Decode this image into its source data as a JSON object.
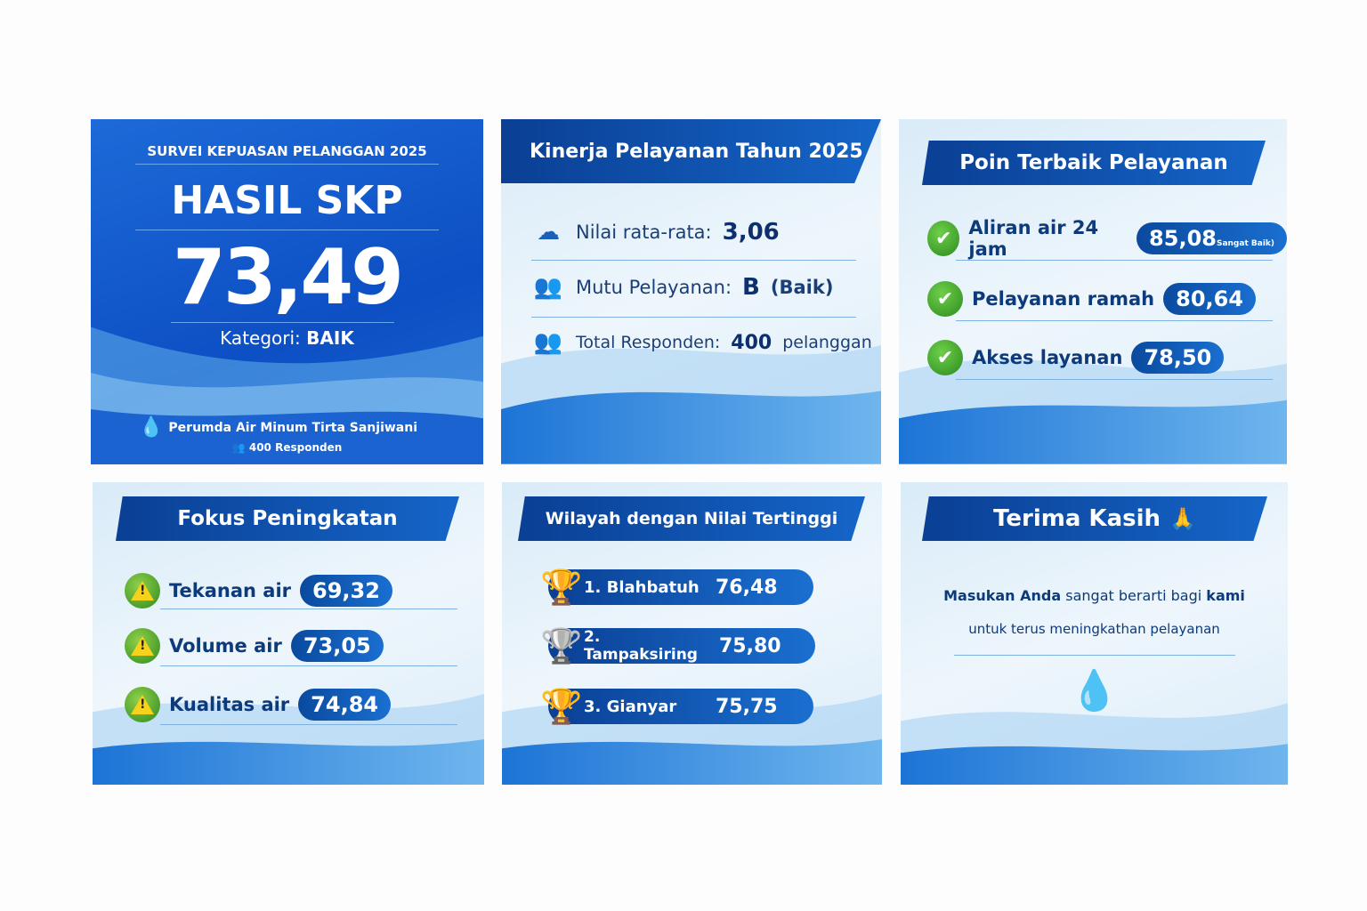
{
  "hasil": {
    "subtitle": "SURVEI KEPUASAN PELANGGAN 2025",
    "title": "HASIL SKP",
    "score": "73,49",
    "category_label": "Kategori:",
    "category_value": "BAIK",
    "organization": "Perumda Air Minum Tirta Sanjiwani",
    "respondents": "400 Responden"
  },
  "kinerja": {
    "title": "Kinerja Pelayanan Tahun 2025",
    "items": [
      {
        "icon": "cloud-icon",
        "label": "Nilai rata-rata:",
        "value": "3,06",
        "suffix": ""
      },
      {
        "icon": "group-icon",
        "label": "Mutu Pelayanan:",
        "value": "B",
        "suffix": "(Baik)"
      },
      {
        "icon": "people-icon",
        "label": "Total Responden:",
        "value": "400",
        "suffix": "pelanggan"
      }
    ]
  },
  "terbaik": {
    "title": "Poin Terbaik Pelayanan",
    "items": [
      {
        "label": "Aliran air 24 jam",
        "value": "85,08",
        "note": "Sangat Baik)"
      },
      {
        "label": "Pelayanan ramah",
        "value": "80,64"
      },
      {
        "label": "Akses layanan",
        "value": "78,50"
      }
    ]
  },
  "fokus": {
    "title": "Fokus Peningkatan",
    "items": [
      {
        "label": "Tekanan air",
        "value": "69,32"
      },
      {
        "label": "Volume air",
        "value": "73,05"
      },
      {
        "label": "Kualitas air",
        "value": "74,84"
      }
    ]
  },
  "wilayah": {
    "title": "Wilayah dengan Nilai Tertinggi",
    "items": [
      {
        "label": "1. Blahbatuh",
        "value": "76,48",
        "trophy": "gold"
      },
      {
        "label": "2. Tampaksiring",
        "value": "75,80",
        "trophy": "silver"
      },
      {
        "label": "3. Gianyar",
        "value": "75,75",
        "trophy": "gold"
      }
    ]
  },
  "terima": {
    "title": "Terima Kasih",
    "emoji": "🙏",
    "line1_bold1": "Masukan Anda",
    "line1_mid": "sangat berarti bagi",
    "line1_bold2": "kami",
    "line2": "untuk terus meningkathan pelayanan"
  },
  "colors": {
    "primary": "#0a3f94",
    "accent": "#1a6fd0",
    "success": "#2a8a1e",
    "warning": "#f6d21c"
  }
}
